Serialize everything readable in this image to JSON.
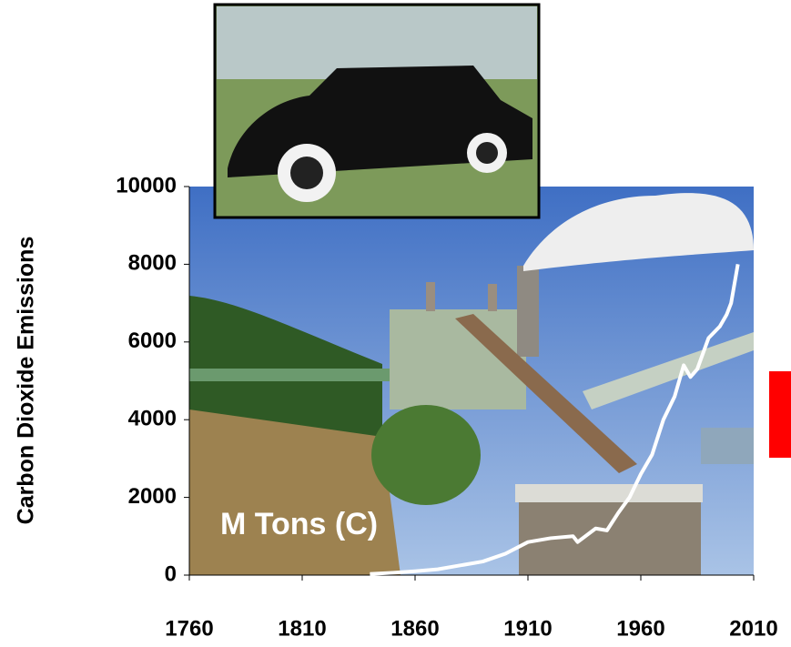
{
  "chart_data": {
    "type": "line",
    "y_label": "Carbon Dioxide Emissions",
    "annotation": "M Tons (C)",
    "x": [
      1840,
      1850,
      1860,
      1870,
      1880,
      1890,
      1900,
      1910,
      1920,
      1930,
      1932,
      1940,
      1945,
      1950,
      1955,
      1960,
      1965,
      1970,
      1975,
      1979,
      1982,
      1985,
      1990,
      1995,
      1998,
      2000,
      2003
    ],
    "values": [
      30,
      60,
      100,
      150,
      250,
      350,
      550,
      850,
      950,
      1000,
      850,
      1200,
      1150,
      1600,
      2000,
      2600,
      3100,
      4000,
      4600,
      5400,
      5100,
      5300,
      6100,
      6400,
      6700,
      7000,
      8000
    ],
    "color": "#ffffff",
    "xlim": [
      1760,
      2010
    ],
    "xticks": [
      1760,
      1810,
      1860,
      1910,
      1960,
      2010
    ],
    "ylim": [
      0,
      10000
    ],
    "yticks": [
      0,
      2000,
      4000,
      6000,
      8000,
      10000
    ]
  }
}
